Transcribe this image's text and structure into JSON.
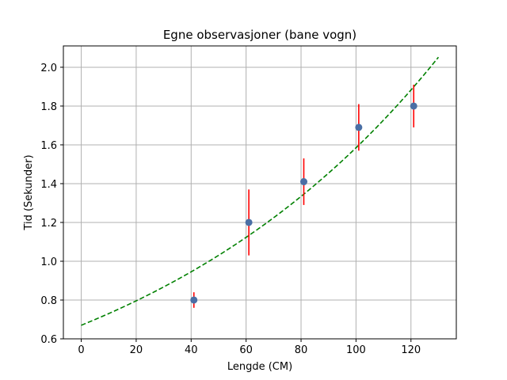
{
  "chart_data": {
    "type": "scatter",
    "title": "Egne observasjoner (bane vogn)",
    "xlabel": "Lengde (CM)",
    "ylabel": "Tid (Sekunder)",
    "xlim": [
      -6.5,
      136.5
    ],
    "ylim": [
      0.6,
      2.11
    ],
    "x_ticks": [
      0,
      20,
      40,
      60,
      80,
      100,
      120
    ],
    "y_ticks": [
      0.6,
      0.8,
      1.0,
      1.2,
      1.4,
      1.6,
      1.8,
      2.0
    ],
    "x_tick_labels": [
      "0",
      "20",
      "40",
      "60",
      "80",
      "100",
      "120"
    ],
    "y_tick_labels": [
      "0.6",
      "0.8",
      "1.0",
      "1.2",
      "1.4",
      "1.6",
      "1.8",
      "2.0"
    ],
    "grid": true,
    "series": [
      {
        "kind": "scatter_with_errorbars",
        "color": "#4a6fa5",
        "errorbar_color": "#ff0000",
        "points": [
          {
            "x": 41,
            "y": 0.8,
            "ylow": 0.76,
            "yhigh": 0.84
          },
          {
            "x": 61,
            "y": 1.2,
            "ylow": 1.03,
            "yhigh": 1.37
          },
          {
            "x": 81,
            "y": 1.41,
            "ylow": 1.29,
            "yhigh": 1.53
          },
          {
            "x": 101,
            "y": 1.69,
            "ylow": 1.57,
            "yhigh": 1.81
          },
          {
            "x": 121,
            "y": 1.8,
            "ylow": 1.69,
            "yhigh": 1.91
          }
        ]
      },
      {
        "kind": "fit_curve",
        "color": "#008000",
        "line_style": "dashed",
        "model": "exponential",
        "a": 0.67,
        "b": 0.00861,
        "x_range": [
          0,
          130
        ]
      }
    ]
  }
}
